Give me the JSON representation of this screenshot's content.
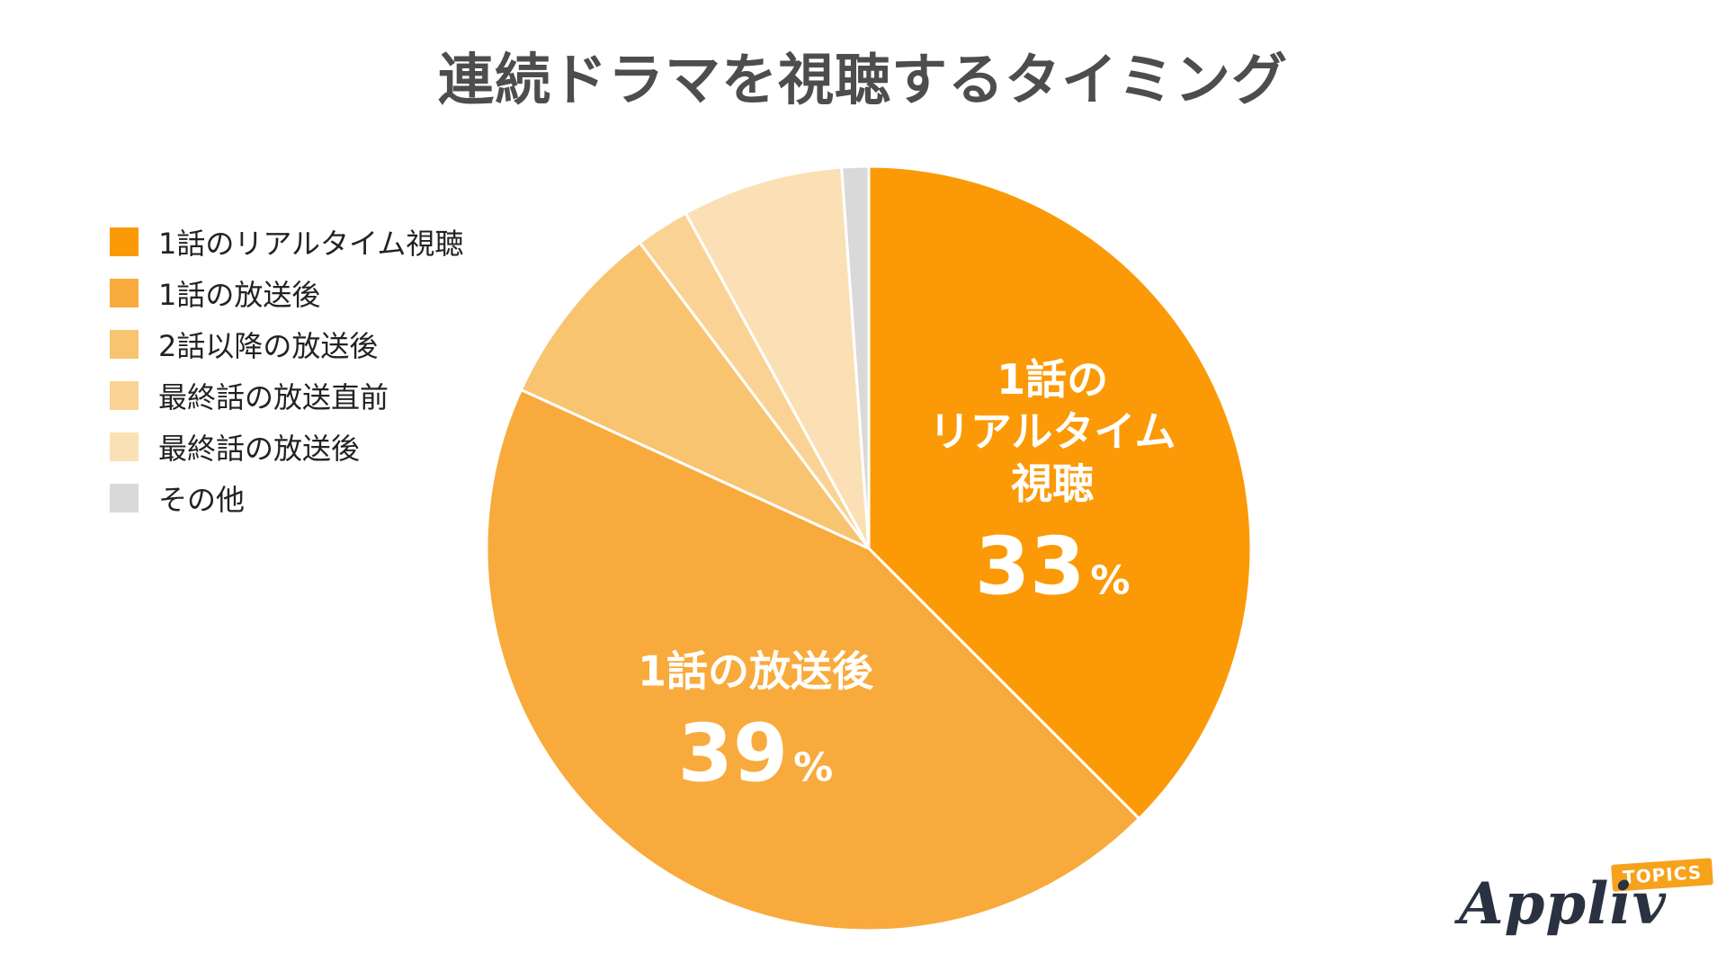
{
  "chart_data": {
    "type": "pie",
    "title": "連続ドラマを視聴するタイミング",
    "series": [
      {
        "labels": [
          "1話のリアルタイム視聴",
          "1話の放送後",
          "2話以降の放送後",
          "最終話の放送直前",
          "最終話の放送後",
          "その他"
        ],
        "values": [
          33,
          39,
          7,
          2,
          6,
          1
        ],
        "colors": [
          "#fb9a06",
          "#f9aa3c",
          "#f8c46f",
          "#fad394",
          "#fbe0b5",
          "#d9d9d9"
        ]
      }
    ],
    "slice_labels": [
      {
        "lines": [
          "1話の",
          "リアルタイム",
          "視聴"
        ],
        "value_text": "33",
        "unit": "%"
      },
      {
        "lines": [
          "1話の放送後"
        ],
        "value_text": "39",
        "unit": "%"
      }
    ],
    "legend_position": "left",
    "start_angle": "12 o'clock, clockwise"
  },
  "brand": {
    "name": "Appliv",
    "tag": "TOPICS"
  }
}
